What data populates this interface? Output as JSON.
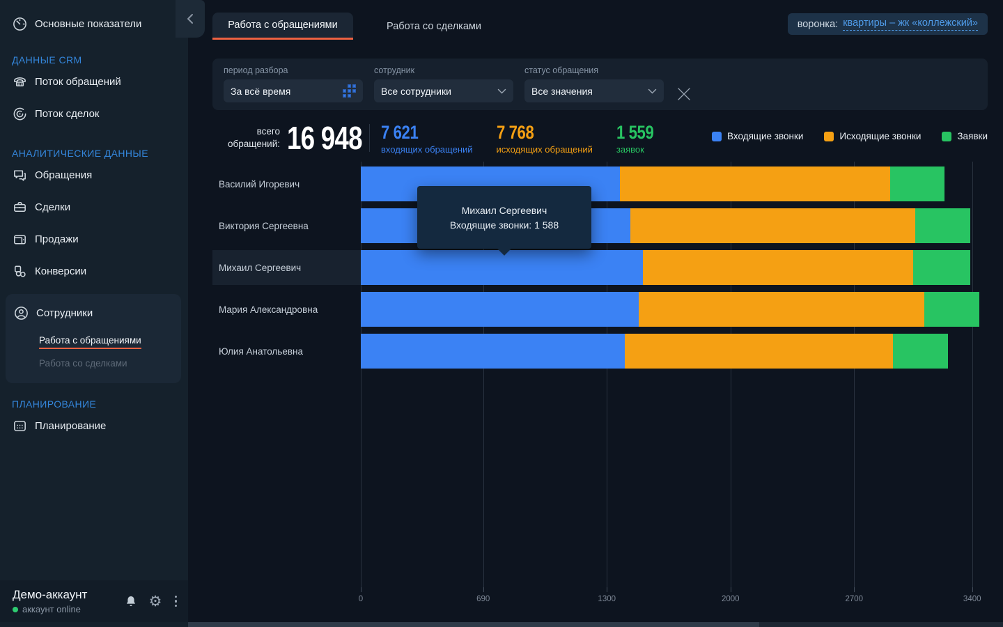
{
  "colors": {
    "accent_orange": "#ee6242",
    "inbound_blue": "#3b82f4",
    "outbound_orange": "#f5a013",
    "requests_green": "#28c462",
    "link_blue": "#4f9be8",
    "section_header_blue": "#3486db",
    "online_green": "#2ecc71"
  },
  "icons": {
    "gear": "⚙"
  },
  "sidebar": {
    "main_item": {
      "label": "Основные показатели"
    },
    "sections": [
      {
        "header": "ДАННЫЕ CRM",
        "items": [
          {
            "label": "Поток обращений"
          },
          {
            "label": "Поток сделок"
          }
        ]
      },
      {
        "header": "АНАЛИТИЧЕСКИЕ ДАННЫЕ",
        "items": [
          {
            "label": "Обращения"
          },
          {
            "label": "Сделки"
          },
          {
            "label": "Продажи"
          },
          {
            "label": "Конверсии"
          },
          {
            "label": "Сотрудники",
            "subitems": [
              {
                "label": "Работа с обращениями",
                "active": true
              },
              {
                "label": "Работа со сделками",
                "active": false
              }
            ]
          }
        ]
      },
      {
        "header": "ПЛАНИРОВАНИЕ",
        "items": [
          {
            "label": "Планирование"
          }
        ]
      }
    ],
    "footer": {
      "account_name": "Демо-аккаунт",
      "status": "аккаунт online"
    }
  },
  "tabs": [
    {
      "label": "Работа с обращениями",
      "active": true
    },
    {
      "label": "Работа со сделками",
      "active": false
    }
  ],
  "funnel": {
    "label": "воронка:",
    "value": "квартиры – жк «коллежский»"
  },
  "filters": {
    "period": {
      "label": "период разбора",
      "value": "За всё время"
    },
    "employee": {
      "label": "сотрудник",
      "value": "Все сотрудники"
    },
    "status": {
      "label": "статус обращения",
      "value": "Все значения"
    }
  },
  "stats": {
    "total_label": "всего обращений:",
    "total_value": "16 948",
    "items": [
      {
        "value": "7 621",
        "label": "входящих обращений",
        "color": "#3b82f4"
      },
      {
        "value": "7 768",
        "label": "исходящих обращений",
        "color": "#f5a013"
      },
      {
        "value": "1 559",
        "label": "заявок",
        "color": "#28c462"
      }
    ]
  },
  "chart_data": {
    "type": "bar",
    "orientation": "horizontal",
    "stacked": true,
    "categories": [
      "Василий Игоревич",
      "Виктория Сергеевна",
      "Михаил Сергеевич",
      "Мария Александровна",
      "Юлия Анатольевна"
    ],
    "series": [
      {
        "name": "Входящие звонки",
        "color": "#3b82f4",
        "values": [
          1460,
          1520,
          1588,
          1565,
          1488
        ]
      },
      {
        "name": "Исходящие звонки",
        "color": "#f5a013",
        "values": [
          1521,
          1604,
          1524,
          1611,
          1508
        ]
      },
      {
        "name": "Заявки",
        "color": "#28c462",
        "values": [
          308,
          310,
          320,
          309,
          312
        ]
      }
    ],
    "x_ticks": [
      0,
      690,
      1300,
      2000,
      2700,
      3400
    ],
    "xlim": [
      0,
      3400
    ],
    "grid": "vertical",
    "legend_position": "top-right",
    "highlighted_category": "Михаил Сергеевич",
    "tooltip": {
      "title": "Михаил Сергеевич",
      "text": "Входящие звонки: 1 588"
    }
  }
}
